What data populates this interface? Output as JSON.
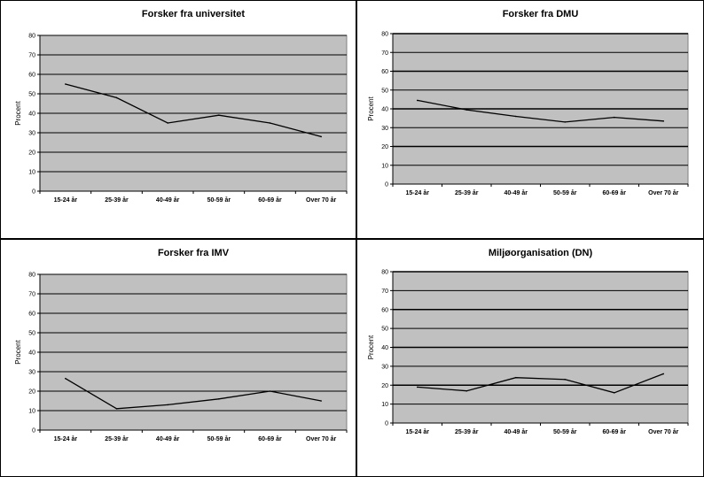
{
  "chart_data": [
    {
      "type": "line",
      "title": "Forsker fra universitet",
      "ylabel": "Procent",
      "xlabel": "",
      "categories": [
        "15-24 år",
        "25-39 år",
        "40-49 år",
        "50-59 år",
        "60-69 år",
        "Over 70 år"
      ],
      "series": [
        {
          "values": [
            55,
            48,
            35,
            39,
            35,
            28
          ]
        }
      ],
      "ylim": [
        0,
        80
      ],
      "yticks": [
        0,
        10,
        20,
        30,
        40,
        50,
        60,
        70,
        80
      ],
      "grid": true,
      "legend": "none"
    },
    {
      "type": "line",
      "title": "Forsker fra DMU",
      "ylabel": "Procent",
      "xlabel": "",
      "categories": [
        "15-24 år",
        "25-39 år",
        "40-49 år",
        "50-59 år",
        "60-69 år",
        "Over 70 år"
      ],
      "series": [
        {
          "values": [
            44.5,
            39.5,
            36,
            33,
            35.5,
            33.5
          ]
        }
      ],
      "ylim": [
        0,
        80
      ],
      "yticks": [
        0,
        10,
        20,
        30,
        40,
        50,
        60,
        70,
        80
      ],
      "grid": true,
      "legend": "none"
    },
    {
      "type": "line",
      "title": "Forsker fra IMV",
      "ylabel": "Procent",
      "xlabel": "",
      "categories": [
        "15-24 år",
        "25-39 år",
        "40-49 år",
        "50-59 år",
        "60-69 år",
        "Over 70 år"
      ],
      "series": [
        {
          "values": [
            26.5,
            11,
            13,
            16,
            20,
            15
          ]
        }
      ],
      "ylim": [
        0,
        80
      ],
      "yticks": [
        0,
        10,
        20,
        30,
        40,
        50,
        60,
        70,
        80
      ],
      "grid": true,
      "legend": "none"
    },
    {
      "type": "line",
      "title": "Miljøorganisation (DN)",
      "ylabel": "Procent",
      "xlabel": "",
      "categories": [
        "15-24 år",
        "25-39 år",
        "40-49 år",
        "50-59 år",
        "60-69 år",
        "Over 70 år"
      ],
      "series": [
        {
          "values": [
            19,
            17,
            24,
            23,
            16,
            26
          ]
        }
      ],
      "ylim": [
        0,
        80
      ],
      "yticks": [
        0,
        10,
        20,
        30,
        40,
        50,
        60,
        70,
        80
      ],
      "grid": true,
      "legend": "none"
    }
  ],
  "colors": {
    "plot_area": "#c0c0c0",
    "gridline": "#000000",
    "series_line": "#000000",
    "border": "#000000"
  }
}
